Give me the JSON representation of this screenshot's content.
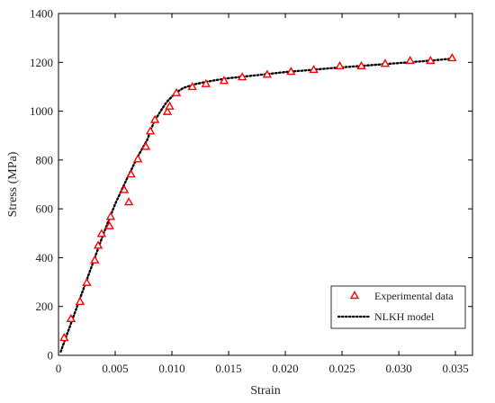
{
  "chart_data": {
    "type": "scatter",
    "title": "",
    "xlabel": "Strain",
    "ylabel": "Stress (MPa)",
    "xlim": [
      0,
      0.0365
    ],
    "ylim": [
      0,
      1400
    ],
    "xticks": [
      0,
      0.005,
      0.01,
      0.015,
      0.02,
      0.025,
      0.03,
      0.035
    ],
    "xtick_labels": [
      "0",
      "0.005",
      "0.010",
      "0.015",
      "0.020",
      "0.025",
      "0.030",
      "0.035"
    ],
    "yticks": [
      0,
      200,
      400,
      600,
      800,
      1000,
      1200,
      1400
    ],
    "ytick_labels": [
      "0",
      "200",
      "400",
      "600",
      "800",
      "1000",
      "1200",
      "1400"
    ],
    "grid": false,
    "legend_position": "bottom-right",
    "series": [
      {
        "name": "Experimental data",
        "kind": "marker",
        "marker": "triangle-open",
        "color": "#ff0000",
        "x": [
          0.0005,
          0.0011,
          0.0019,
          0.0025,
          0.0032,
          0.0035,
          0.0038,
          0.0045,
          0.0046,
          0.0058,
          0.0062,
          0.0064,
          0.007,
          0.0077,
          0.0081,
          0.0085,
          0.0096,
          0.0098,
          0.0104,
          0.0118,
          0.013,
          0.0146,
          0.0162,
          0.0184,
          0.0205,
          0.0225,
          0.0248,
          0.0267,
          0.0288,
          0.031,
          0.0328,
          0.0347
        ],
        "y": [
          72,
          150,
          220,
          298,
          390,
          450,
          498,
          530,
          568,
          678,
          628,
          742,
          804,
          855,
          918,
          965,
          998,
          1020,
          1075,
          1100,
          1112,
          1125,
          1140,
          1150,
          1162,
          1170,
          1185,
          1185,
          1195,
          1207,
          1207,
          1218
        ]
      },
      {
        "name": "NLKH model",
        "kind": "line",
        "style": "dotted",
        "color": "#000000",
        "x": [
          0.0002,
          0.001,
          0.002,
          0.003,
          0.004,
          0.005,
          0.006,
          0.007,
          0.0078,
          0.0084,
          0.009,
          0.0095,
          0.01,
          0.0105,
          0.011,
          0.012,
          0.013,
          0.014,
          0.015,
          0.016,
          0.018,
          0.02,
          0.022,
          0.024,
          0.026,
          0.028,
          0.03,
          0.032,
          0.034,
          0.035
        ],
        "y": [
          15,
          118,
          246,
          374,
          502,
          620,
          720,
          815,
          880,
          955,
          1000,
          1035,
          1060,
          1080,
          1095,
          1110,
          1120,
          1128,
          1135,
          1140,
          1150,
          1160,
          1168,
          1176,
          1183,
          1190,
          1197,
          1204,
          1212,
          1216
        ]
      }
    ]
  }
}
